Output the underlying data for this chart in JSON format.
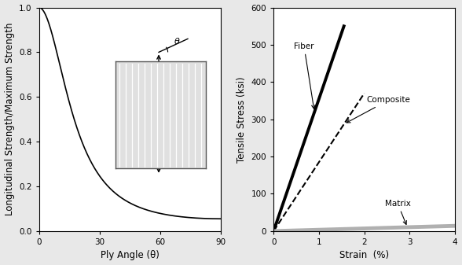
{
  "left": {
    "xlabel": "Ply Angle (θ)",
    "ylabel": "Longitudinal Strength/Maximum Strength",
    "xlim": [
      0,
      90
    ],
    "ylim": [
      0,
      1.0
    ],
    "xticks": [
      0,
      30,
      60,
      90
    ],
    "yticks": [
      0.0,
      0.2,
      0.4,
      0.6,
      0.8,
      1.0
    ],
    "curve_color": "#000000",
    "curve_lw": 1.2
  },
  "right": {
    "xlabel": "Strain  (%)",
    "ylabel": "Tensile Stress (ksi)",
    "xlim": [
      0,
      4
    ],
    "ylim": [
      0,
      600
    ],
    "xticks": [
      0,
      1,
      2,
      3,
      4
    ],
    "yticks": [
      0,
      100,
      200,
      300,
      400,
      500,
      600
    ],
    "fiber": {
      "x": [
        0,
        1.55
      ],
      "y": [
        0,
        550
      ],
      "color": "#000000",
      "lw": 2.8,
      "linestyle": "solid"
    },
    "composite": {
      "x": [
        0,
        2.0
      ],
      "y": [
        0,
        370
      ],
      "color": "#000000",
      "lw": 1.5,
      "linestyle": "dashed"
    },
    "matrix": {
      "x": [
        0,
        4.0
      ],
      "y": [
        0,
        14
      ],
      "color": "#b0b0b0",
      "lw": 3.5,
      "linestyle": "solid"
    }
  },
  "bg_color": "#e8e8e8",
  "axes_bg": "#ffffff",
  "fontsize": 7.5,
  "label_fontsize": 8.5
}
